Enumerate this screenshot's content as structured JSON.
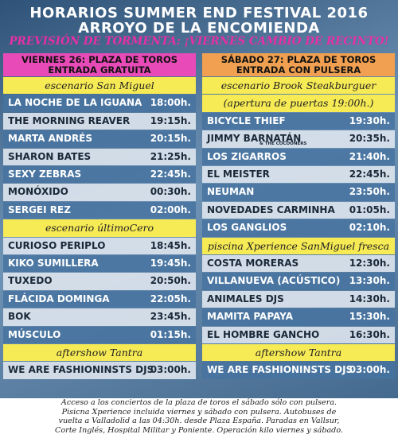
{
  "header": {
    "title_lines": [
      "HORARIOS SUMMER END FESTIVAL 2016",
      "ARROYO DE LA ENCOMIENDA"
    ],
    "notice": "PREVISIÓN DE TORMENTA: ¡VIERNES CAMBIO DE RECINTO!"
  },
  "columns": [
    {
      "heading": [
        "VIERNES 26: PLAZA DE TOROS",
        "ENTRADA GRATUITA"
      ],
      "sections": [
        {
          "stage": [
            "escenario San Miguel"
          ],
          "rows": [
            {
              "act": "LA NOCHE DE LA IGUANA",
              "time": "18:00h."
            },
            {
              "act": "THE MORNING REAVER",
              "time": "19:15h."
            },
            {
              "act": "MARTA ANDRÉS",
              "time": "20:15h."
            },
            {
              "act": "SHARON BATES",
              "time": "21:25h."
            },
            {
              "act": "SEXY ZEBRAS",
              "time": "22:45h."
            },
            {
              "act": "MONÓXIDO",
              "time": "00:30h."
            },
            {
              "act": "SERGEI REZ",
              "time": "02:00h."
            }
          ]
        },
        {
          "stage": [
            "escenario últimoCero"
          ],
          "rows": [
            {
              "act": "CURIOSO PERIPLO",
              "time": "18:45h."
            },
            {
              "act": "KIKO SUMILLERA",
              "time": "19:45h."
            },
            {
              "act": "TUXEDO",
              "time": "20:50h."
            },
            {
              "act": "FLÁCIDA DOMINGA",
              "time": "22:05h."
            },
            {
              "act": "BOK",
              "time": "23:45h."
            },
            {
              "act": "MÚSCULO",
              "time": "01:15h."
            }
          ]
        },
        {
          "stage": [
            "aftershow Tantra"
          ],
          "rows": [
            {
              "act": "WE ARE FASHIONINSTS DJS",
              "time": "03:00h."
            }
          ]
        }
      ]
    },
    {
      "heading": [
        "SÁBADO 27: PLAZA DE TOROS",
        "ENTRADA CON PULSERA"
      ],
      "sections": [
        {
          "stage": [
            "escenario Brook Steakburguer",
            "(apertura de puertas 19:00h.)"
          ],
          "rows": [
            {
              "act": "BICYCLE THIEF",
              "time": "19:30h."
            },
            {
              "act": "JIMMY BARNATÁN",
              "sub": "& THE COCOONERS",
              "time": "20:35h."
            },
            {
              "act": "LOS ZIGARROS",
              "time": "21:40h."
            },
            {
              "act": "EL MEISTER",
              "time": "22:45h."
            },
            {
              "act": "NEUMAN",
              "time": "23:50h."
            },
            {
              "act": "NOVEDADES CARMINHA",
              "time": "01:05h."
            },
            {
              "act": "LOS GANGLIOS",
              "time": "02:10h."
            }
          ]
        },
        {
          "stage": [
            "piscina Xperience SanMiguel fresca"
          ],
          "rows": [
            {
              "act": "COSTA MORERAS",
              "time": "12:30h."
            },
            {
              "act": "VILLANUEVA (ACÚSTICO)",
              "time": "13:30h."
            },
            {
              "act": "ANIMALES DJS",
              "time": "14:30h."
            },
            {
              "act": "MAMITA PAPAYA",
              "time": "15:30h."
            },
            {
              "act": "EL HOMBRE GANCHO",
              "time": "16:30h."
            }
          ]
        },
        {
          "stage": [
            "aftershow Tantra"
          ],
          "rows": [
            {
              "act": "WE ARE FASHIONINSTS DJS",
              "time": "03:00h."
            }
          ]
        }
      ]
    }
  ],
  "footer": [
    "Acceso a los conciertos de la plaza de toros el sábado sólo con pulsera.",
    "Pisicna Xperience incluida viernes y sábado con pulsera. Autobuses de",
    "vuelta a Valladolid a las 04:30h. desde Plaza España. Paradas en Vallsur,",
    "Corte Inglés, Hospital Militar y Poniente. Operación kilo viernes y sábado."
  ]
}
